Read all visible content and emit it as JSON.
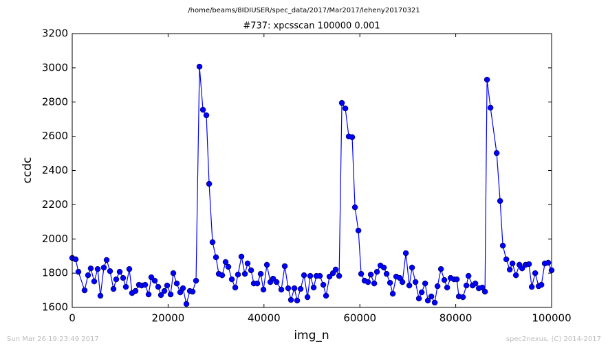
{
  "chart_data": {
    "type": "line",
    "suptitle": "/home/beams/8IDIUSER/spec_data/2017/Mar2017/leheny20170321",
    "title": "#737: xpcsscan 100000 0.001",
    "xlabel": "img_n",
    "ylabel": "ccdc",
    "footer_left": "Sun Mar 26 19:23:49 2017",
    "footer_right": "spec2nexus, (C) 2014-2017",
    "xlim": [
      0,
      100000
    ],
    "xticks": [
      0,
      20000,
      40000,
      60000,
      80000,
      100000
    ],
    "ylim": [
      1600,
      3200
    ],
    "yticks": [
      1600,
      1800,
      2000,
      2200,
      2400,
      2600,
      2800,
      3000,
      3200
    ],
    "grid": false,
    "x": [
      0,
      720,
      1290,
      2580,
      3300,
      3870,
      4590,
      5310,
      5880,
      6600,
      7180,
      7890,
      8610,
      9180,
      9900,
      10620,
      11190,
      11910,
      12480,
      13200,
      13920,
      14490,
      15210,
      15930,
      16500,
      17220,
      17940,
      18510,
      19230,
      19800,
      20520,
      21090,
      21810,
      22530,
      23100,
      23820,
      24540,
      25110,
      25830,
      26550,
      27270,
      27980,
      28560,
      29270,
      29990,
      30570,
      31280,
      32000,
      32570,
      33290,
      34010,
      34580,
      35300,
      36020,
      36590,
      37310,
      37880,
      38600,
      39320,
      39890,
      40610,
      41330,
      41900,
      42620,
      43620,
      44340,
      45060,
      45630,
      46350,
      46920,
      47640,
      48360,
      49080,
      49650,
      50370,
      50940,
      51660,
      52380,
      52950,
      53670,
      54390,
      54960,
      55680,
      56250,
      56970,
      57690,
      58400,
      58980,
      59700,
      60270,
      60990,
      61710,
      62280,
      63000,
      63570,
      64290,
      65010,
      65580,
      66300,
      66870,
      67590,
      68310,
      68880,
      69600,
      70320,
      70890,
      71610,
      72320,
      72900,
      73620,
      74190,
      74910,
      75620,
      76200,
      76920,
      77630,
      78210,
      78930,
      79640,
      80220,
      80650,
      81510,
      82230,
      82660,
      83520,
      84090,
      84810,
      85530,
      86100,
      86530,
      87250,
      88540,
      89260,
      89830,
      90550,
      91270,
      91840,
      92560,
      93280,
      93850,
      94570,
      95280,
      95860,
      96580,
      97290,
      97870,
      98580,
      99300,
      100000
    ],
    "series": [
      {
        "name": "ccdc",
        "color": "#0000ff",
        "values": [
          1889,
          1881,
          1808,
          1700,
          1788,
          1828,
          1752,
          1824,
          1668,
          1833,
          1877,
          1812,
          1708,
          1764,
          1808,
          1772,
          1720,
          1824,
          1684,
          1696,
          1732,
          1728,
          1732,
          1676,
          1776,
          1756,
          1720,
          1672,
          1696,
          1728,
          1676,
          1800,
          1740,
          1688,
          1712,
          1620,
          1696,
          1692,
          1756,
          3007,
          2755,
          2723,
          2322,
          1981,
          1893,
          1796,
          1788,
          1865,
          1837,
          1764,
          1716,
          1792,
          1897,
          1796,
          1857,
          1817,
          1740,
          1740,
          1796,
          1704,
          1849,
          1748,
          1768,
          1748,
          1704,
          1841,
          1712,
          1644,
          1712,
          1640,
          1708,
          1788,
          1660,
          1784,
          1716,
          1784,
          1784,
          1732,
          1668,
          1780,
          1800,
          1821,
          1784,
          2795,
          2763,
          2599,
          2595,
          2185,
          2049,
          1796,
          1756,
          1748,
          1792,
          1740,
          1808,
          1845,
          1833,
          1796,
          1744,
          1680,
          1780,
          1772,
          1748,
          1917,
          1728,
          1833,
          1748,
          1652,
          1688,
          1740,
          1640,
          1664,
          1628,
          1724,
          1824,
          1760,
          1716,
          1772,
          1764,
          1764,
          1664,
          1660,
          1728,
          1784,
          1728,
          1740,
          1712,
          1716,
          1692,
          2931,
          2767,
          2502,
          2222,
          1961,
          1881,
          1821,
          1857,
          1788,
          1849,
          1828,
          1849,
          1853,
          1720,
          1800,
          1724,
          1732,
          1857,
          1861,
          1817
        ]
      }
    ]
  }
}
